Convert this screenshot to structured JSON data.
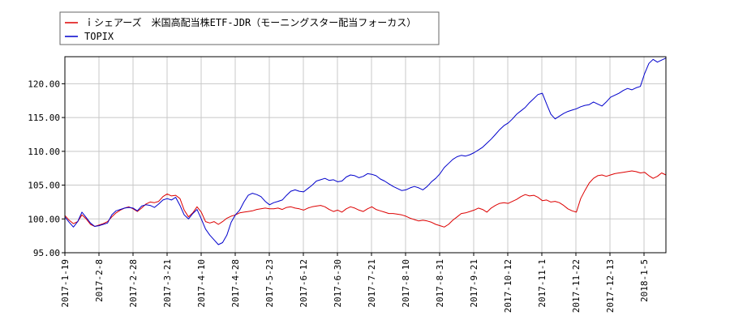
{
  "chart_data": {
    "type": "line",
    "title": "",
    "xlabel": "",
    "ylabel": "",
    "ylim": [
      95,
      124
    ],
    "yticks": [
      95,
      100,
      105,
      110,
      115,
      120
    ],
    "ytick_labels": [
      "95.00",
      "100.00",
      "105.00",
      "110.00",
      "115.00",
      "120.00"
    ],
    "xtick_labels": [
      "2017-1-19",
      "2017-2-8",
      "2017-2-28",
      "2017-3-21",
      "2017-4-10",
      "2017-4-28",
      "2017-5-23",
      "2017-6-12",
      "2017-6-30",
      "2017-7-21",
      "2017-8-10",
      "2017-8-31",
      "2017-9-21",
      "2017-10-12",
      "2017-11-1",
      "2017-11-22",
      "2017-12-13",
      "2018-1-5"
    ],
    "grid": true,
    "legend_position": "top-left",
    "series": [
      {
        "name": "ｉシェアーズ　米国高配当株ETF-JDR（モーニングスター配当フォーカス）",
        "color": "#dd0000",
        "values": [
          100.5,
          99.8,
          99.3,
          99.6,
          100.6,
          100.0,
          99.2,
          98.9,
          99.1,
          99.3,
          99.6,
          100.3,
          100.9,
          101.3,
          101.6,
          101.8,
          101.5,
          101.1,
          101.6,
          102.2,
          102.5,
          102.4,
          102.6,
          103.3,
          103.7,
          103.4,
          103.5,
          103.0,
          101.3,
          100.3,
          100.9,
          101.8,
          101.0,
          99.6,
          99.4,
          99.6,
          99.2,
          99.6,
          100.1,
          100.4,
          100.6,
          100.9,
          101.0,
          101.1,
          101.2,
          101.4,
          101.5,
          101.6,
          101.5,
          101.5,
          101.6,
          101.4,
          101.7,
          101.8,
          101.6,
          101.5,
          101.3,
          101.6,
          101.8,
          101.9,
          102.0,
          101.8,
          101.4,
          101.1,
          101.3,
          101.0,
          101.5,
          101.8,
          101.6,
          101.3,
          101.1,
          101.5,
          101.8,
          101.4,
          101.2,
          101.0,
          100.8,
          100.8,
          100.7,
          100.6,
          100.4,
          100.1,
          99.9,
          99.7,
          99.8,
          99.7,
          99.5,
          99.2,
          99.0,
          98.8,
          99.2,
          99.8,
          100.3,
          100.8,
          100.9,
          101.1,
          101.3,
          101.6,
          101.4,
          101.0,
          101.6,
          102.0,
          102.3,
          102.4,
          102.3,
          102.6,
          102.9,
          103.3,
          103.6,
          103.4,
          103.5,
          103.2,
          102.7,
          102.8,
          102.5,
          102.6,
          102.4,
          102.0,
          101.5,
          101.2,
          101.0,
          103.0,
          104.2,
          105.3,
          106.0,
          106.4,
          106.5,
          106.3,
          106.5,
          106.7,
          106.8,
          106.9,
          107.0,
          107.1,
          107.0,
          106.8,
          106.9,
          106.4,
          106.0,
          106.3,
          106.8,
          106.5
        ]
      },
      {
        "name": "TOPIX",
        "color": "#0000cc",
        "values": [
          100.3,
          99.5,
          98.8,
          99.6,
          101.0,
          100.2,
          99.4,
          98.9,
          99.0,
          99.2,
          99.4,
          100.6,
          101.2,
          101.4,
          101.6,
          101.7,
          101.6,
          101.2,
          101.9,
          102.1,
          102.0,
          101.7,
          102.2,
          102.8,
          103.0,
          102.8,
          103.2,
          102.0,
          100.6,
          100.0,
          100.8,
          101.4,
          100.0,
          98.5,
          97.6,
          96.9,
          96.2,
          96.5,
          97.6,
          99.5,
          100.6,
          101.3,
          102.5,
          103.5,
          103.8,
          103.6,
          103.3,
          102.6,
          102.1,
          102.4,
          102.6,
          102.8,
          103.5,
          104.1,
          104.3,
          104.1,
          104.0,
          104.5,
          105.0,
          105.6,
          105.8,
          106.0,
          105.7,
          105.8,
          105.5,
          105.6,
          106.2,
          106.5,
          106.4,
          106.1,
          106.3,
          106.7,
          106.6,
          106.4,
          105.9,
          105.6,
          105.2,
          104.8,
          104.5,
          104.2,
          104.3,
          104.6,
          104.8,
          104.6,
          104.3,
          104.8,
          105.5,
          106.0,
          106.7,
          107.6,
          108.2,
          108.8,
          109.2,
          109.4,
          109.3,
          109.5,
          109.8,
          110.2,
          110.6,
          111.2,
          111.8,
          112.5,
          113.2,
          113.8,
          114.2,
          114.8,
          115.5,
          116.0,
          116.5,
          117.2,
          117.8,
          118.4,
          118.6,
          117.0,
          115.5,
          114.8,
          115.2,
          115.6,
          115.9,
          116.1,
          116.3,
          116.6,
          116.8,
          116.9,
          117.3,
          117.0,
          116.7,
          117.3,
          118.0,
          118.3,
          118.6,
          119.0,
          119.3,
          119.1,
          119.4,
          119.6,
          121.5,
          123.0,
          123.6,
          123.2,
          123.5,
          123.8
        ]
      }
    ]
  }
}
